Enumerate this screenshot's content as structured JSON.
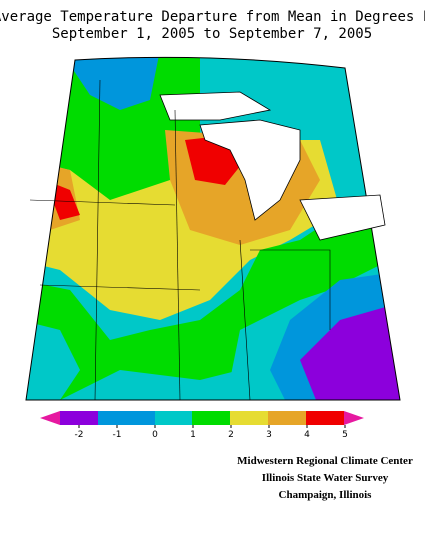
{
  "header": {
    "title_line1": "Average Temperature Departure from Mean in Degrees F",
    "title_line2": "September 1, 2005 to September 7, 2005"
  },
  "colorbar": {
    "ticks": [
      -2,
      -1,
      0,
      1,
      2,
      3,
      4,
      5
    ]
  },
  "credits": {
    "line1": "Midwestern Regional Climate Center",
    "line2": "Illinois State Water Survey",
    "line3": "Champaign, Illinois"
  }
}
